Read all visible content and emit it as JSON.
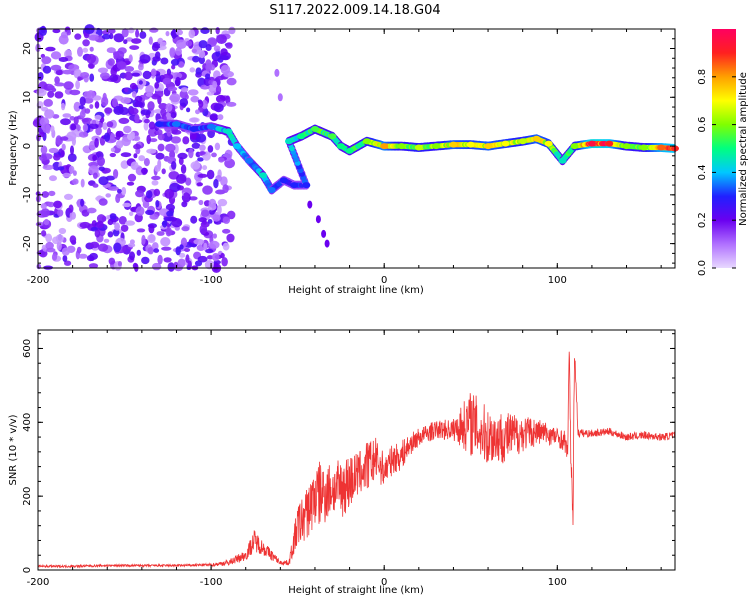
{
  "title": "S117.2022.009.14.18.G04",
  "chart_data": [
    {
      "type": "heatmap",
      "xlabel": "Height of straight line (km)",
      "ylabel": "Frequency (Hz)",
      "xlim": [
        -200,
        168
      ],
      "ylim": [
        -25,
        24
      ],
      "x_ticks": [
        -200,
        -100,
        0,
        100
      ],
      "y_ticks": [
        -20,
        -10,
        0,
        10,
        20
      ],
      "colorbar": {
        "label": "Normalized spectral amplitude",
        "range": [
          0.0,
          1.0
        ],
        "ticks": [
          0.0,
          0.2,
          0.4,
          0.6,
          0.8
        ],
        "colormap": [
          "#e8d8ff",
          "#b070ff",
          "#6a00f0",
          "#2020ff",
          "#00c8ff",
          "#00ff80",
          "#80ff00",
          "#ffff00",
          "#ffa000",
          "#ff2020",
          "#ff0060"
        ]
      },
      "noise_region": {
        "x_range": [
          -200,
          -88
        ],
        "y_range": [
          -25,
          24
        ],
        "amplitude": 0.15
      },
      "ridge": [
        {
          "x": -130,
          "f": 4.5,
          "a": 0.3
        },
        {
          "x": -120,
          "f": 4.5,
          "a": 0.35
        },
        {
          "x": -110,
          "f": 3.5,
          "a": 0.3
        },
        {
          "x": -100,
          "f": 4,
          "a": 0.35
        },
        {
          "x": -90,
          "f": 3,
          "a": 0.45
        },
        {
          "x": -85,
          "f": 0,
          "a": 0.4
        },
        {
          "x": -78,
          "f": -3,
          "a": 0.35
        },
        {
          "x": -70,
          "f": -6,
          "a": 0.45
        },
        {
          "x": -65,
          "f": -9,
          "a": 0.35
        },
        {
          "x": -58,
          "f": -7,
          "a": 0.3
        },
        {
          "x": -52,
          "f": -8,
          "a": 0.3
        },
        {
          "x": -45,
          "f": -8,
          "a": 0.3
        },
        {
          "x": -55,
          "f": 1,
          "a": 0.45
        },
        {
          "x": -48,
          "f": 2,
          "a": 0.5
        },
        {
          "x": -40,
          "f": 3.5,
          "a": 0.55
        },
        {
          "x": -30,
          "f": 2,
          "a": 0.55
        },
        {
          "x": -25,
          "f": 0,
          "a": 0.5
        },
        {
          "x": -20,
          "f": -1,
          "a": 0.5
        },
        {
          "x": -10,
          "f": 1,
          "a": 0.6
        },
        {
          "x": 0,
          "f": 0,
          "a": 0.8
        },
        {
          "x": 10,
          "f": 0,
          "a": 0.6
        },
        {
          "x": 20,
          "f": -0.3,
          "a": 0.65
        },
        {
          "x": 30,
          "f": 0,
          "a": 0.6
        },
        {
          "x": 40,
          "f": 0.3,
          "a": 0.75
        },
        {
          "x": 50,
          "f": 0.3,
          "a": 0.7
        },
        {
          "x": 60,
          "f": 0,
          "a": 0.75
        },
        {
          "x": 70,
          "f": 0.5,
          "a": 0.7
        },
        {
          "x": 80,
          "f": 1,
          "a": 0.65
        },
        {
          "x": 88,
          "f": 1.5,
          "a": 0.75
        },
        {
          "x": 95,
          "f": 0.5,
          "a": 0.7
        },
        {
          "x": 103,
          "f": -3,
          "a": 0.45
        },
        {
          "x": 110,
          "f": 0,
          "a": 0.6
        },
        {
          "x": 120,
          "f": 0.5,
          "a": 0.95
        },
        {
          "x": 130,
          "f": 0.5,
          "a": 0.9
        },
        {
          "x": 140,
          "f": 0,
          "a": 0.6
        },
        {
          "x": 150,
          "f": -0.3,
          "a": 0.6
        },
        {
          "x": 160,
          "f": -0.3,
          "a": 0.85
        },
        {
          "x": 168,
          "f": -0.5,
          "a": 0.9
        }
      ],
      "extra_features": [
        {
          "x": -43,
          "f": -12,
          "a": 0.2
        },
        {
          "x": -38,
          "f": -15,
          "a": 0.2
        },
        {
          "x": -35,
          "f": -18,
          "a": 0.2
        },
        {
          "x": -33,
          "f": -20,
          "a": 0.2
        },
        {
          "x": -62,
          "f": 15,
          "a": 0.1
        },
        {
          "x": -60,
          "f": 10,
          "a": 0.1
        }
      ]
    },
    {
      "type": "line",
      "xlabel": "Height of straight line (km)",
      "ylabel": "SNR (10 * v/v)",
      "xlim": [
        -200,
        168
      ],
      "ylim": [
        0,
        650
      ],
      "x_ticks": [
        -200,
        -100,
        0,
        100
      ],
      "y_ticks": [
        0,
        200,
        400,
        600
      ],
      "color": "#ee3333",
      "series": [
        {
          "name": "SNR",
          "x": [
            -200,
            -180,
            -160,
            -140,
            -120,
            -100,
            -90,
            -80,
            -75,
            -70,
            -65,
            -60,
            -55,
            -50,
            -45,
            -40,
            -35,
            -30,
            -25,
            -20,
            -15,
            -10,
            -5,
            0,
            5,
            10,
            15,
            20,
            25,
            30,
            40,
            50,
            55,
            60,
            70,
            80,
            90,
            100,
            104,
            106,
            107,
            108,
            109,
            110,
            112,
            120,
            130,
            140,
            150,
            160,
            168
          ],
          "y": [
            10,
            10,
            12,
            12,
            12,
            14,
            20,
            40,
            80,
            60,
            40,
            20,
            20,
            120,
            150,
            200,
            210,
            220,
            220,
            240,
            260,
            280,
            300,
            270,
            300,
            310,
            340,
            360,
            370,
            380,
            380,
            400,
            380,
            360,
            360,
            370,
            375,
            360,
            350,
            320,
            620,
            240,
            140,
            600,
            370,
            370,
            375,
            360,
            365,
            360,
            365
          ],
          "jitter": [
            3,
            3,
            3,
            3,
            3,
            4,
            8,
            15,
            30,
            20,
            15,
            5,
            8,
            60,
            70,
            90,
            90,
            70,
            80,
            80,
            60,
            70,
            60,
            45,
            40,
            40,
            30,
            25,
            25,
            25,
            30,
            90,
            85,
            80,
            70,
            50,
            35,
            25,
            30,
            20,
            20,
            80,
            60,
            30,
            12,
            10,
            10,
            10,
            10,
            10,
            10
          ]
        }
      ]
    }
  ]
}
